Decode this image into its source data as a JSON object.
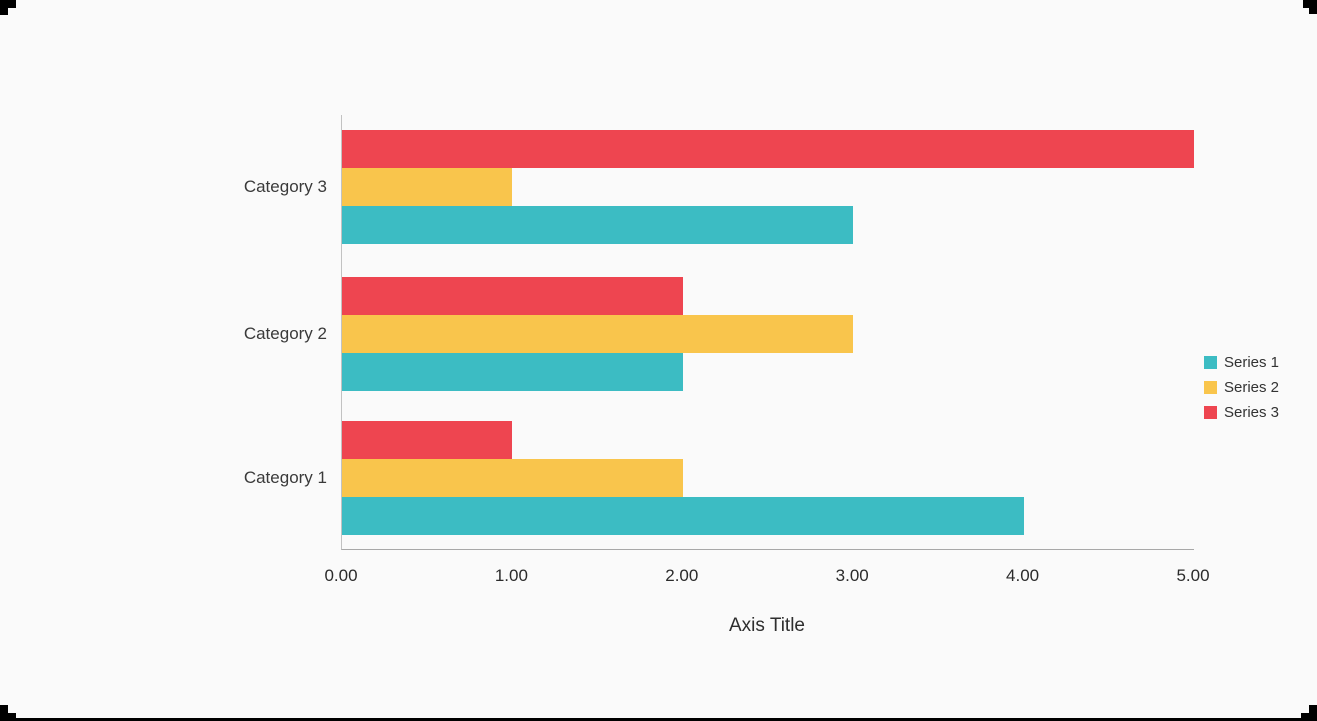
{
  "background_color": "#FAFAFA",
  "chart_data": {
    "type": "bar",
    "orientation": "horizontal",
    "xlabel": "Axis Title",
    "categories": [
      "Category 1",
      "Category 2",
      "Category 3"
    ],
    "series": [
      {
        "name": "Series 1",
        "color": "#3CBCC3",
        "values": [
          4,
          2,
          3
        ]
      },
      {
        "name": "Series 2",
        "color": "#F9C54C",
        "values": [
          2,
          3,
          1
        ]
      },
      {
        "name": "Series 3",
        "color": "#EE4550",
        "values": [
          1,
          2,
          5
        ]
      }
    ],
    "xlim": [
      0,
      5
    ],
    "x_ticks": [
      "0.00",
      "1.00",
      "2.00",
      "3.00",
      "4.00",
      "5.00"
    ],
    "grid": false,
    "legend_position": "right"
  }
}
